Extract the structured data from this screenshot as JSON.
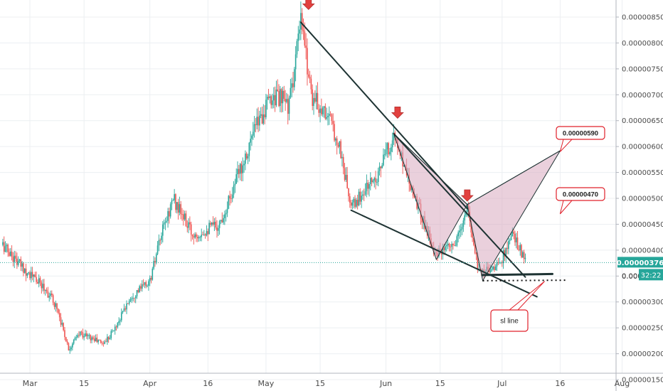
{
  "chart_data": {
    "type": "line",
    "chart_style": "candlestick",
    "grid": true,
    "x_ticks": [
      "Mar",
      "15",
      "Apr",
      "16",
      "May",
      "15",
      "Jun",
      "15",
      "Jul",
      "16",
      "Aug"
    ],
    "y_ticks": [
      "0.00000150",
      "0.00000200",
      "0.00000250",
      "0.00000300",
      "0.00000350",
      "0.00000400",
      "0.00000450",
      "0.00000500",
      "0.00000550",
      "0.00000600",
      "0.00000650",
      "0.00000700",
      "0.00000750",
      "0.00000800",
      "0.00000850"
    ],
    "ylim": [
      1.5e-06,
      8.6e-06
    ],
    "x_range_days": [
      0,
      162
    ],
    "price_path": [
      {
        "x": "Feb 22",
        "y": 4.1e-06
      },
      {
        "x": "Feb 26",
        "y": 3.75e-06
      },
      {
        "x": "Mar 5",
        "y": 3.25e-06
      },
      {
        "x": "Mar 8",
        "y": 2.9e-06
      },
      {
        "x": "Mar 11",
        "y": 2.1e-06
      },
      {
        "x": "Mar 14",
        "y": 2.4e-06
      },
      {
        "x": "Mar 20",
        "y": 2.2e-06
      },
      {
        "x": "Mar 23",
        "y": 2.5e-06
      },
      {
        "x": "Mar 27",
        "y": 3.1e-06
      },
      {
        "x": "Apr 1",
        "y": 3.4e-06
      },
      {
        "x": "Apr 4",
        "y": 4.3e-06
      },
      {
        "x": "Apr 7",
        "y": 5e-06
      },
      {
        "x": "Apr 12",
        "y": 4.3e-06
      },
      {
        "x": "Apr 19",
        "y": 4.5e-06
      },
      {
        "x": "Apr 24",
        "y": 5.5e-06
      },
      {
        "x": "Apr 29",
        "y": 6.5e-06
      },
      {
        "x": "May 3",
        "y": 7e-06
      },
      {
        "x": "May 7",
        "y": 6.8e-06
      },
      {
        "x": "May 10",
        "y": 8.4e-06
      },
      {
        "x": "May 13",
        "y": 6.95e-06
      },
      {
        "x": "May 17",
        "y": 6.6e-06
      },
      {
        "x": "May 20",
        "y": 6e-06
      },
      {
        "x": "May 23",
        "y": 4.8e-06
      },
      {
        "x": "May 27",
        "y": 5.2e-06
      },
      {
        "x": "May 30",
        "y": 5.5e-06
      },
      {
        "x": "Jun 3",
        "y": 6.2e-06
      },
      {
        "x": "Jun 6",
        "y": 5.6e-06
      },
      {
        "x": "Jun 10",
        "y": 4.7e-06
      },
      {
        "x": "Jun 14",
        "y": 3.9e-06
      },
      {
        "x": "Jun 19",
        "y": 4.1e-06
      },
      {
        "x": "Jun 22",
        "y": 4.8e-06
      },
      {
        "x": "Jun 25",
        "y": 3.6e-06
      },
      {
        "x": "Jun 30",
        "y": 3.7e-06
      },
      {
        "x": "Jul 4",
        "y": 4.3e-06
      },
      {
        "x": "Jul 7",
        "y": 3.76e-06
      }
    ],
    "last_price_line": 3.76e-06,
    "price_badge_value": "0.00000376",
    "time_badge": "32:22",
    "partial_axis_label": "0.000",
    "annotation_boxes": [
      {
        "text": "0.00000590",
        "target": {
          "x": "Jul 16",
          "y": 5.9e-06
        }
      },
      {
        "text": "0.00000470",
        "target": {
          "x": "Jul 16",
          "y": 4.7e-06
        }
      },
      {
        "text": "sl line",
        "target": {
          "x": "Jul 12",
          "y": 3.4e-06
        }
      }
    ],
    "trendlines": [
      {
        "from": {
          "x": "May 10",
          "y": 8.4e-06
        },
        "to": {
          "x": "Jun 22",
          "y": 4.8e-06
        }
      },
      {
        "from": {
          "x": "Jun 3",
          "y": 6.25e-06
        },
        "to": {
          "x": "Jul 7",
          "y": 3.48e-06
        }
      },
      {
        "from": {
          "x": "May 23",
          "y": 4.77e-06
        },
        "to": {
          "x": "Jul 10",
          "y": 3.1e-06
        }
      },
      {
        "from": {
          "x": "Jun 26",
          "y": 3.52e-06
        },
        "to": {
          "x": "Jul 14",
          "y": 3.54e-06
        }
      }
    ],
    "harmonic_pattern": {
      "points": [
        {
          "x": "Jun 3",
          "y": 6.25e-06
        },
        {
          "x": "Jun 14",
          "y": 3.82e-06
        },
        {
          "x": "Jun 22",
          "y": 4.88e-06
        },
        {
          "x": "Jun 26",
          "y": 3.41e-06
        },
        {
          "x": "Jul 16",
          "y": 5.92e-06
        }
      ],
      "fill": "#d9a9bf"
    },
    "sl_dotted_line": {
      "from": {
        "x": "Jun 26",
        "y": 3.41e-06
      },
      "to": {
        "x": "Jul 18",
        "y": 3.42e-06
      }
    },
    "arrows": [
      {
        "x": "May 12",
        "y": 8.7e-06
      },
      {
        "x": "Jun 4",
        "y": 6.6e-06
      },
      {
        "x": "Jun 22",
        "y": 5e-06
      }
    ],
    "colors": {
      "up": "#26a69a",
      "down": "#ef5350",
      "trend_line": "#1e3333",
      "annotation_red": "#e0202a",
      "pattern_fill": "#d9a9bf",
      "price_badge": "#26a69a",
      "grid": "#eceff2"
    }
  }
}
